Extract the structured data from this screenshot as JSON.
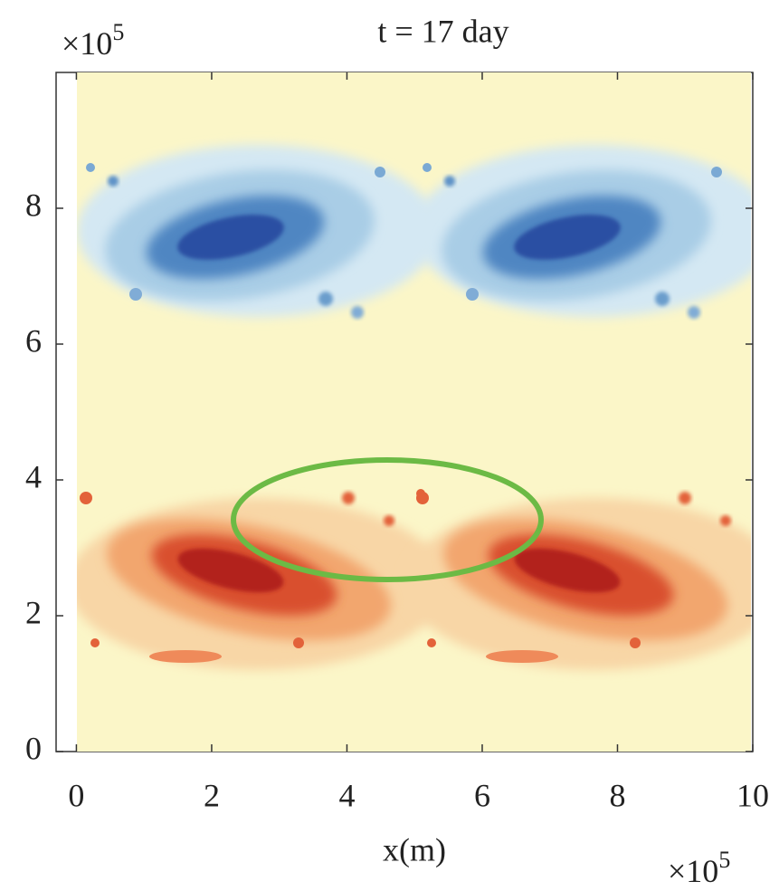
{
  "chart_data": {
    "type": "heatmap",
    "title": "t = 17 day",
    "x_label": "x(m)",
    "x_multiplier": {
      "base": "×10",
      "exponent": "5"
    },
    "y_multiplier": {
      "base": "×10",
      "exponent": "5"
    },
    "xlim": [
      -0.3,
      10
    ],
    "ylim": [
      0,
      10
    ],
    "xticks": [
      0,
      2,
      4,
      6,
      8,
      10
    ],
    "yticks": [
      0,
      2,
      4,
      6,
      8
    ]
  }
}
